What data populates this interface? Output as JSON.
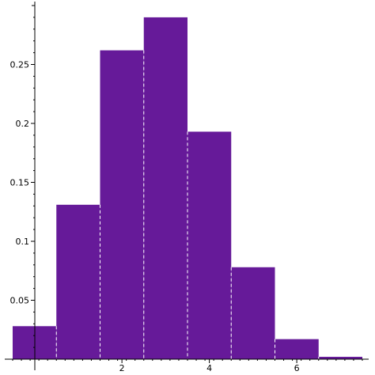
{
  "chart_data": {
    "type": "bar",
    "title": "",
    "xlabel": "",
    "ylabel": "",
    "bin_width": 1,
    "bins": [
      {
        "x0": -0.5,
        "x1": 0.5,
        "value": 0.028
      },
      {
        "x0": 0.5,
        "x1": 1.5,
        "value": 0.131
      },
      {
        "x0": 1.5,
        "x1": 2.5,
        "value": 0.262
      },
      {
        "x0": 2.5,
        "x1": 3.5,
        "value": 0.29
      },
      {
        "x0": 3.5,
        "x1": 4.5,
        "value": 0.193
      },
      {
        "x0": 4.5,
        "x1": 5.5,
        "value": 0.078
      },
      {
        "x0": 5.5,
        "x1": 6.5,
        "value": 0.017
      },
      {
        "x0": 6.5,
        "x1": 7.5,
        "value": 0.002
      }
    ],
    "xlim": [
      -0.5,
      7.5
    ],
    "ylim": [
      0,
      0.3
    ],
    "x_ticks": [
      {
        "value": 2,
        "label": "2"
      },
      {
        "value": 4,
        "label": "4"
      },
      {
        "value": 6,
        "label": "6"
      }
    ],
    "y_ticks": [
      {
        "value": 0.05,
        "label": "0.05"
      },
      {
        "value": 0.1,
        "label": "0.1"
      },
      {
        "value": 0.15,
        "label": "0.15"
      },
      {
        "value": 0.2,
        "label": "0.2"
      },
      {
        "value": 0.25,
        "label": "0.25"
      }
    ],
    "bar_color": "#661a99",
    "bar_separator_color": "#ffffff",
    "axis_color": "#000000",
    "grid": false,
    "legend": "none"
  }
}
